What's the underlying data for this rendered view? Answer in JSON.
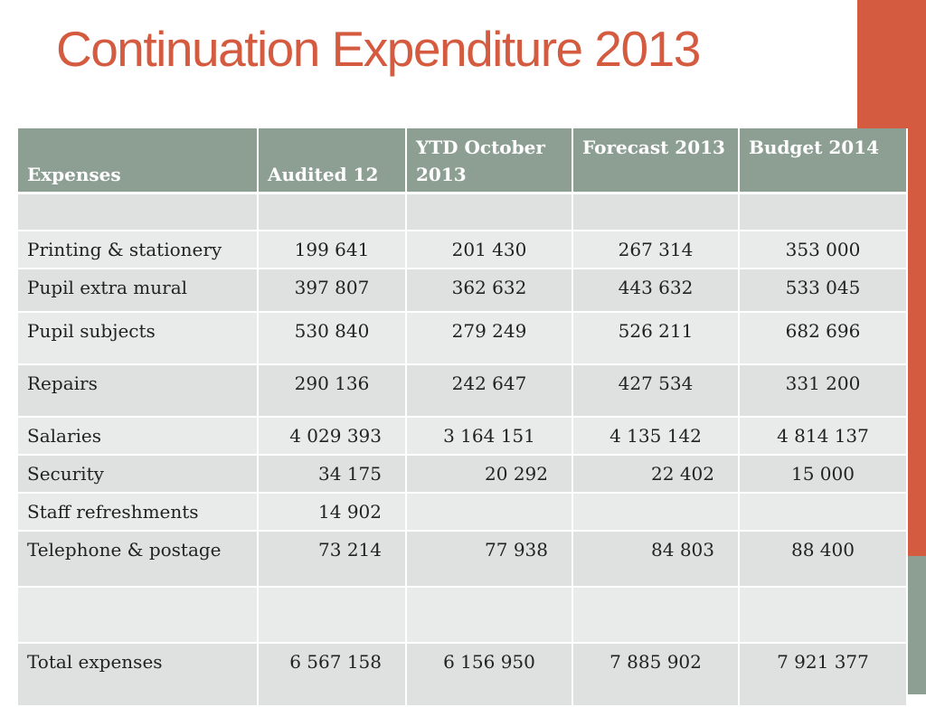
{
  "slide": {
    "title": "Continuation Expenditure 2013",
    "accent_color": "#d45b3f",
    "header_color": "#8d9f93"
  },
  "table": {
    "headers": [
      "Expenses",
      "Audited 12",
      "YTD October 2013",
      "Forecast 2013",
      "Budget 2014"
    ],
    "rows": [
      [
        "",
        "",
        "",
        "",
        ""
      ],
      [
        "Printing & stationery",
        "199 641",
        "201 430",
        "267 314",
        "353 000"
      ],
      [
        "Pupil extra mural",
        "397 807",
        "362 632",
        "443 632",
        "533 045"
      ],
      [
        "Pupil subjects",
        "530 840",
        "279 249",
        "526 211",
        "682 696"
      ],
      [
        "Repairs",
        "290 136",
        "242 647",
        "427 534",
        "331 200"
      ],
      [
        "Salaries",
        "4 029 393",
        "3 164 151",
        "4 135 142",
        "4 814 137"
      ],
      [
        "Security",
        "34 175",
        "20 292",
        "22 402",
        "15 000"
      ],
      [
        "Staff refreshments",
        "14 902",
        "",
        "",
        ""
      ],
      [
        "Telephone & postage",
        "73 214",
        "77 938",
        "84 803",
        "88 400"
      ],
      [
        "",
        "",
        "",
        "",
        ""
      ],
      [
        "Total expenses",
        "6 567 158",
        "6 156  950",
        "7 885  902",
        "7 921 377"
      ]
    ]
  }
}
